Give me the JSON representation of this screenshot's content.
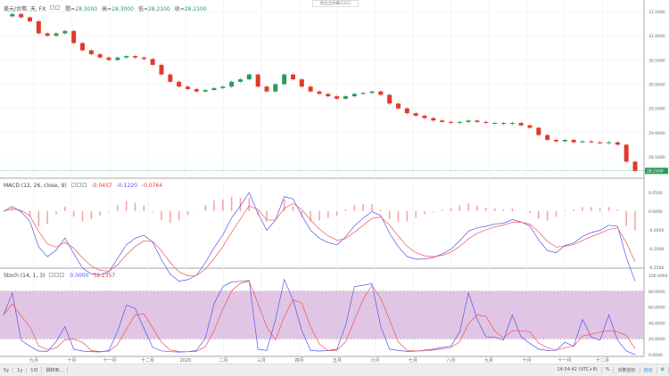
{
  "header": {
    "symbol": "美元/台幣, 天, FX",
    "open_label": "開",
    "open": "28.3000",
    "high_label": "高",
    "high": "28.3000",
    "low_label": "低",
    "low": "28.2100",
    "close_label": "收",
    "close": "28.2100",
    "exit_fullscreen": "退出全屏幕(ESC)"
  },
  "macd": {
    "label": "MACD (12, 26, close, 9)",
    "v1": "-0.0457",
    "v2": "-0.1220",
    "v3": "-0.0764",
    "axis": [
      "0.0500",
      "0.0000",
      "-0.0500",
      "-0.1000",
      "-0.1500"
    ]
  },
  "stoch": {
    "label": "Stoch (14, 1, 3)",
    "v1": "0.0000",
    "v2": "32.2357",
    "axis": [
      "100.0000",
      "80.0000",
      "60.0000",
      "40.0000",
      "20.0000",
      "0.0000"
    ]
  },
  "price_axis": [
    "31.5000",
    "31.0000",
    "30.5000",
    "30.0000",
    "29.5000",
    "29.0000",
    "28.5000"
  ],
  "last_price": "28.2100",
  "months": [
    "九月",
    "十月",
    "十一月",
    "十二月",
    "2020",
    "二月",
    "三月",
    "四月",
    "五月",
    "六月",
    "七月",
    "八月",
    "九月",
    "十月",
    "十一月",
    "十二月"
  ],
  "bottom": {
    "r5y": "5y",
    "r1y": "1y",
    "r1d": "1日",
    "goto": "跳转到...",
    "time": "14:54:42 (UTC+8)",
    "pct": "%",
    "log": "对数坐标",
    "auto": "自动",
    "settings_icon": "gear-icon"
  },
  "colors": {
    "up": "#2a9a5a",
    "down": "#e03a2a",
    "macd": "#5555ee",
    "signal": "#ee5555",
    "stoch_band": "#d9b7dd"
  },
  "chart_data": {
    "type": "candlestick",
    "price_range": [
      28.2,
      31.6
    ],
    "closes": [
      31.4,
      31.45,
      31.38,
      31.3,
      31.05,
      31.0,
      31.05,
      31.1,
      30.85,
      30.7,
      30.62,
      30.55,
      30.5,
      30.55,
      30.58,
      30.55,
      30.52,
      30.4,
      30.2,
      30.05,
      29.95,
      29.9,
      29.85,
      29.88,
      29.92,
      29.95,
      30.05,
      30.1,
      30.2,
      29.95,
      29.85,
      30.0,
      30.2,
      30.1,
      29.95,
      29.85,
      29.8,
      29.75,
      29.7,
      29.75,
      29.8,
      29.82,
      29.85,
      29.78,
      29.6,
      29.5,
      29.4,
      29.35,
      29.3,
      29.25,
      29.22,
      29.2,
      29.22,
      29.25,
      29.22,
      29.2,
      29.2,
      29.18,
      29.2,
      29.15,
      29.1,
      28.95,
      28.85,
      28.82,
      28.85,
      28.8,
      28.82,
      28.8,
      28.78,
      28.8,
      28.75,
      28.4,
      28.21
    ]
  }
}
